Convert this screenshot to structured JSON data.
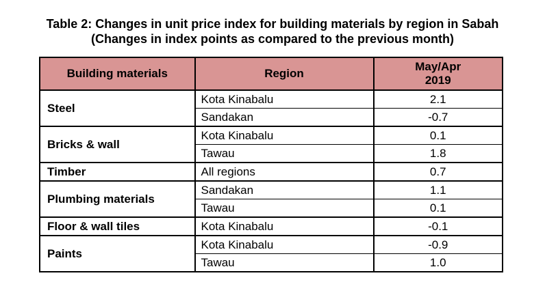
{
  "title": {
    "line1": "Table 2: Changes in unit price index for building materials by region in Sabah",
    "line2": "(Changes in index points as compared to the previous month)"
  },
  "table": {
    "headers": {
      "material": "Building materials",
      "region": "Region",
      "period_line1": "May/Apr",
      "period_line2": "2019"
    },
    "groups": [
      {
        "material": "Steel",
        "rows": [
          {
            "region": "Kota Kinabalu",
            "value": "2.1"
          },
          {
            "region": "Sandakan",
            "value": "-0.7"
          }
        ]
      },
      {
        "material": "Bricks & wall",
        "rows": [
          {
            "region": "Kota Kinabalu",
            "value": "0.1"
          },
          {
            "region": "Tawau",
            "value": "1.8"
          }
        ]
      },
      {
        "material": "Timber",
        "rows": [
          {
            "region": "All regions",
            "value": "0.7"
          }
        ]
      },
      {
        "material": "Plumbing materials",
        "rows": [
          {
            "region": "Sandakan",
            "value": "1.1"
          },
          {
            "region": "Tawau",
            "value": "0.1"
          }
        ]
      },
      {
        "material": "Floor & wall tiles",
        "rows": [
          {
            "region": "Kota Kinabalu",
            "value": "-0.1"
          }
        ]
      },
      {
        "material": "Paints",
        "rows": [
          {
            "region": "Kota Kinabalu",
            "value": "-0.9"
          },
          {
            "region": "Tawau",
            "value": "1.0"
          }
        ]
      }
    ]
  },
  "colors": {
    "header_background": "#d99594"
  }
}
